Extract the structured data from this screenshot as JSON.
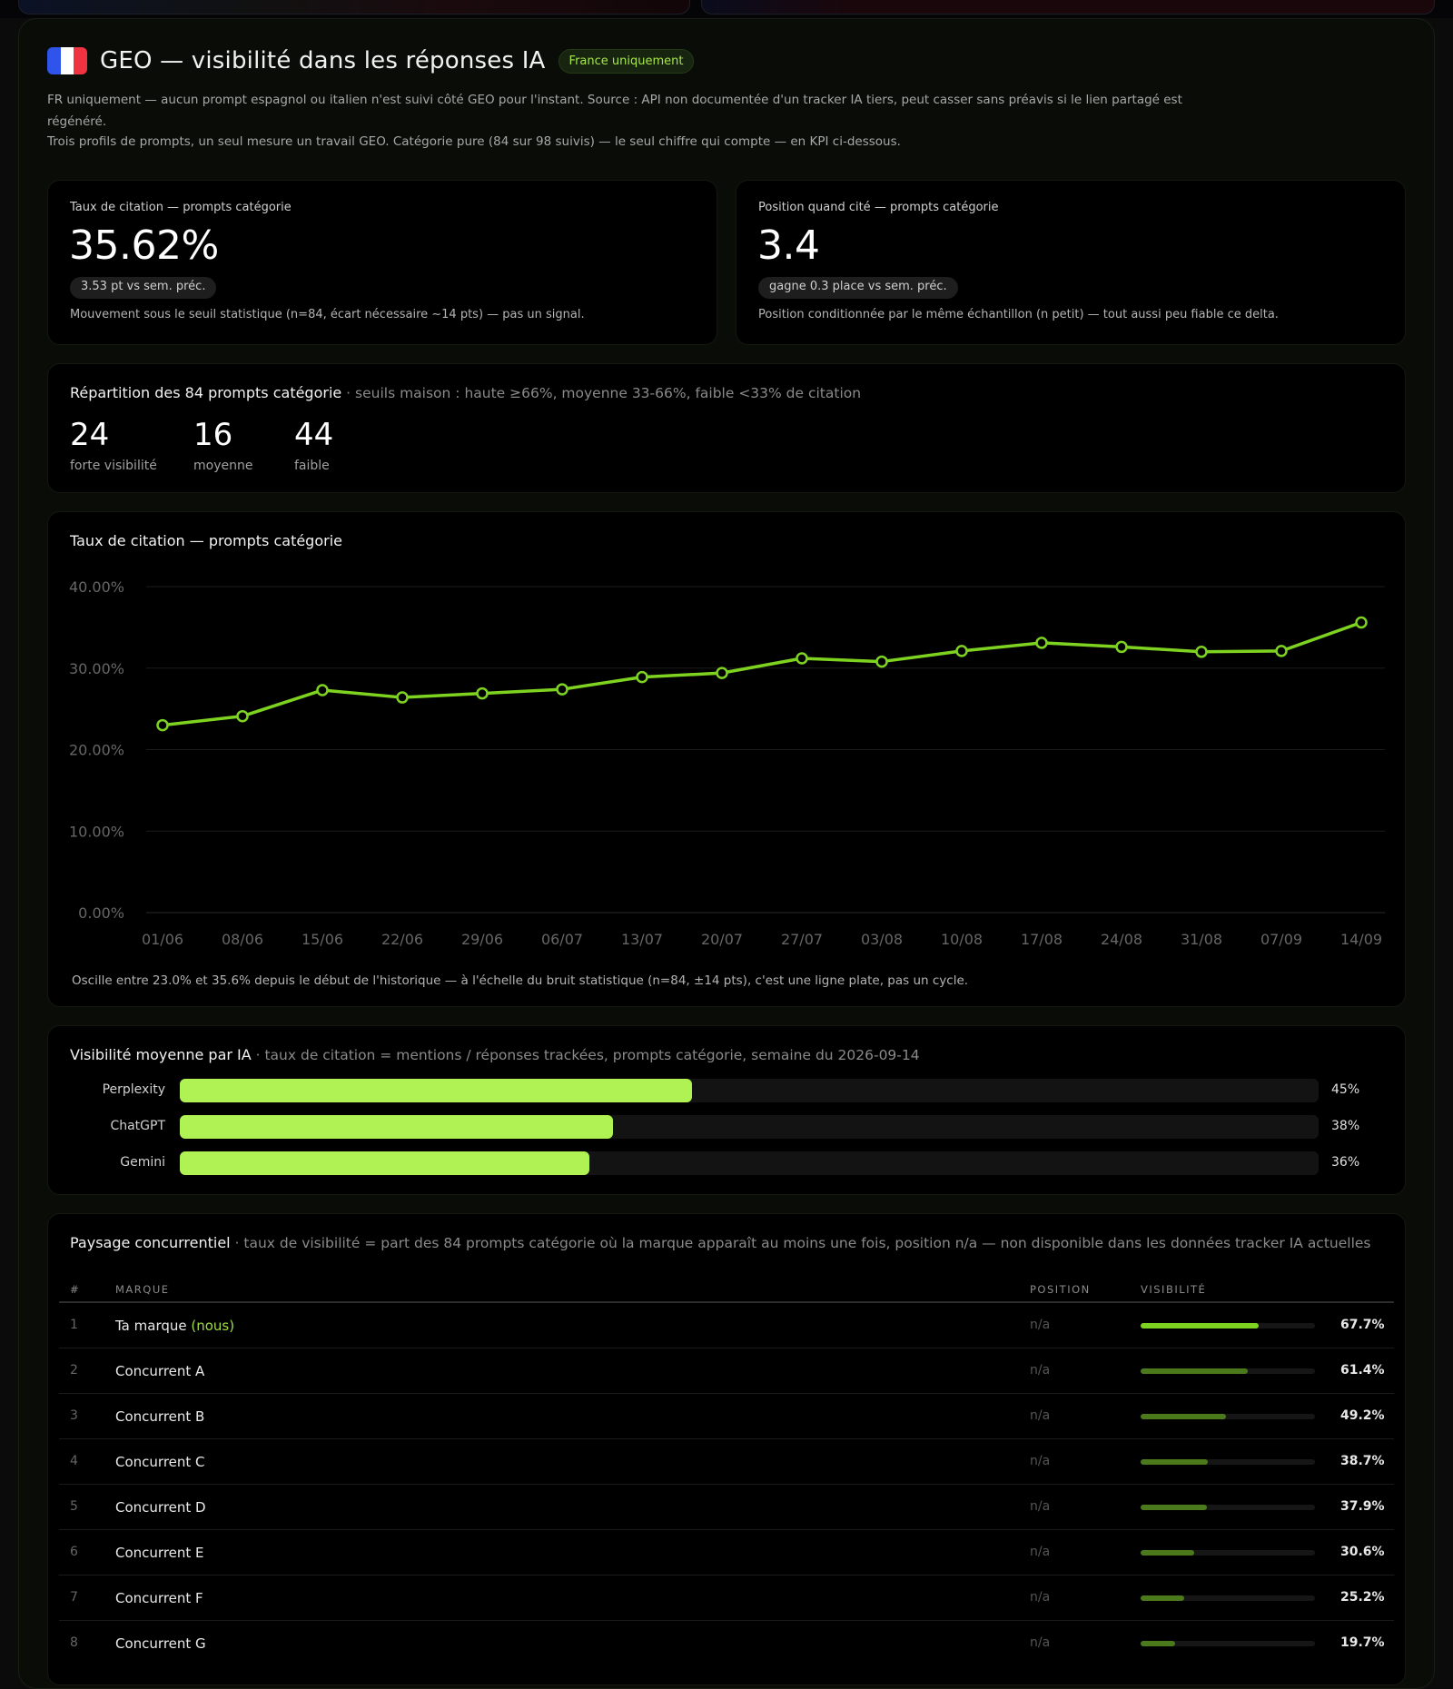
{
  "header": {
    "title": "GEO — visibilité dans les réponses IA",
    "badge": "France uniquement",
    "desc1": "FR uniquement — aucun prompt espagnol ou italien n'est suivi côté GEO pour l'instant. Source : API non documentée d'un tracker IA tiers, peut casser sans préavis si le lien partagé est régénéré.",
    "desc2": "Trois profils de prompts, un seul mesure un travail GEO. Catégorie pure (84 sur 98 suivis) — le seul chiffre qui compte — en KPI ci-dessous."
  },
  "kpis": [
    {
      "label": "Taux de citation — prompts catégorie",
      "value": "35.62%",
      "delta": "3.53 pt  vs sem. préc.",
      "foot": "Mouvement sous le seuil statistique (n=84, écart nécessaire ~14 pts) — pas un signal."
    },
    {
      "label": "Position quand cité — prompts catégorie",
      "value": "3.4",
      "delta": "gagne 0.3 place  vs sem. préc.",
      "foot": "Position conditionnée par le même échantillon (n petit) — tout aussi peu fiable ce delta."
    }
  ],
  "distribution": {
    "title": "Répartition des 84 prompts catégorie",
    "subtitle": " · seuils maison : haute ≥66%, moyenne 33-66%, faible <33% de citation",
    "stats": [
      {
        "value": "24",
        "label": "forte visibilité"
      },
      {
        "value": "16",
        "label": "moyenne"
      },
      {
        "value": "44",
        "label": "faible"
      }
    ]
  },
  "chart_data": {
    "type": "line",
    "title": "Taux de citation — prompts catégorie",
    "x": [
      "01/06",
      "08/06",
      "15/06",
      "22/06",
      "29/06",
      "06/07",
      "13/07",
      "20/07",
      "27/07",
      "03/08",
      "10/08",
      "17/08",
      "24/08",
      "31/08",
      "07/09",
      "14/09"
    ],
    "series": [
      {
        "values": [
          23.0,
          24.1,
          27.3,
          26.4,
          26.9,
          27.4,
          28.9,
          29.4,
          31.2,
          30.8,
          32.1,
          33.1,
          32.6,
          32.0,
          32.1,
          35.6
        ]
      }
    ],
    "yticks": [
      "0.00%",
      "10.00%",
      "20.00%",
      "30.00%",
      "40.00%"
    ],
    "ylim": [
      0,
      40
    ],
    "grid": true,
    "color": "#7ed321",
    "footnote": "Oscille entre 23.0% et 35.6% depuis le début de l'historique — à l'échelle du bruit statistique (n=84, ±14 pts), c'est une ligne plate, pas un cycle."
  },
  "by_ai": {
    "title": "Visibilité moyenne par IA",
    "subtitle": " · taux de citation = mentions / réponses trackées, prompts catégorie, semaine du 2026-09-14",
    "rows": [
      {
        "name": "Perplexity",
        "value": 45,
        "label": "45%"
      },
      {
        "name": "ChatGPT",
        "value": 38,
        "label": "38%"
      },
      {
        "name": "Gemini",
        "value": 36,
        "label": "36%"
      }
    ],
    "bar_color": "#b0f254"
  },
  "landscape": {
    "title": "Paysage concurrentiel",
    "subtitle": " · taux de visibilité = part des 84 prompts catégorie où la marque apparaît au moins une fois, position n/a — non disponible dans les données tracker IA actuelles",
    "headers": {
      "idx": "#",
      "brand": "MARQUE",
      "position": "POSITION",
      "visibility": "VISIBILITÉ"
    },
    "us_tag": "(nous)",
    "rows": [
      {
        "idx": "1",
        "brand": "Ta marque",
        "us": true,
        "position": "n/a",
        "vis": 67.7,
        "vis_label": "67.7%"
      },
      {
        "idx": "2",
        "brand": "Concurrent A",
        "us": false,
        "position": "n/a",
        "vis": 61.4,
        "vis_label": "61.4%"
      },
      {
        "idx": "3",
        "brand": "Concurrent B",
        "us": false,
        "position": "n/a",
        "vis": 49.2,
        "vis_label": "49.2%"
      },
      {
        "idx": "4",
        "brand": "Concurrent C",
        "us": false,
        "position": "n/a",
        "vis": 38.7,
        "vis_label": "38.7%"
      },
      {
        "idx": "5",
        "brand": "Concurrent D",
        "us": false,
        "position": "n/a",
        "vis": 37.9,
        "vis_label": "37.9%"
      },
      {
        "idx": "6",
        "brand": "Concurrent E",
        "us": false,
        "position": "n/a",
        "vis": 30.6,
        "vis_label": "30.6%"
      },
      {
        "idx": "7",
        "brand": "Concurrent F",
        "us": false,
        "position": "n/a",
        "vis": 25.2,
        "vis_label": "25.2%"
      },
      {
        "idx": "8",
        "brand": "Concurrent G",
        "us": false,
        "position": "n/a",
        "vis": 19.7,
        "vis_label": "19.7%"
      }
    ]
  }
}
